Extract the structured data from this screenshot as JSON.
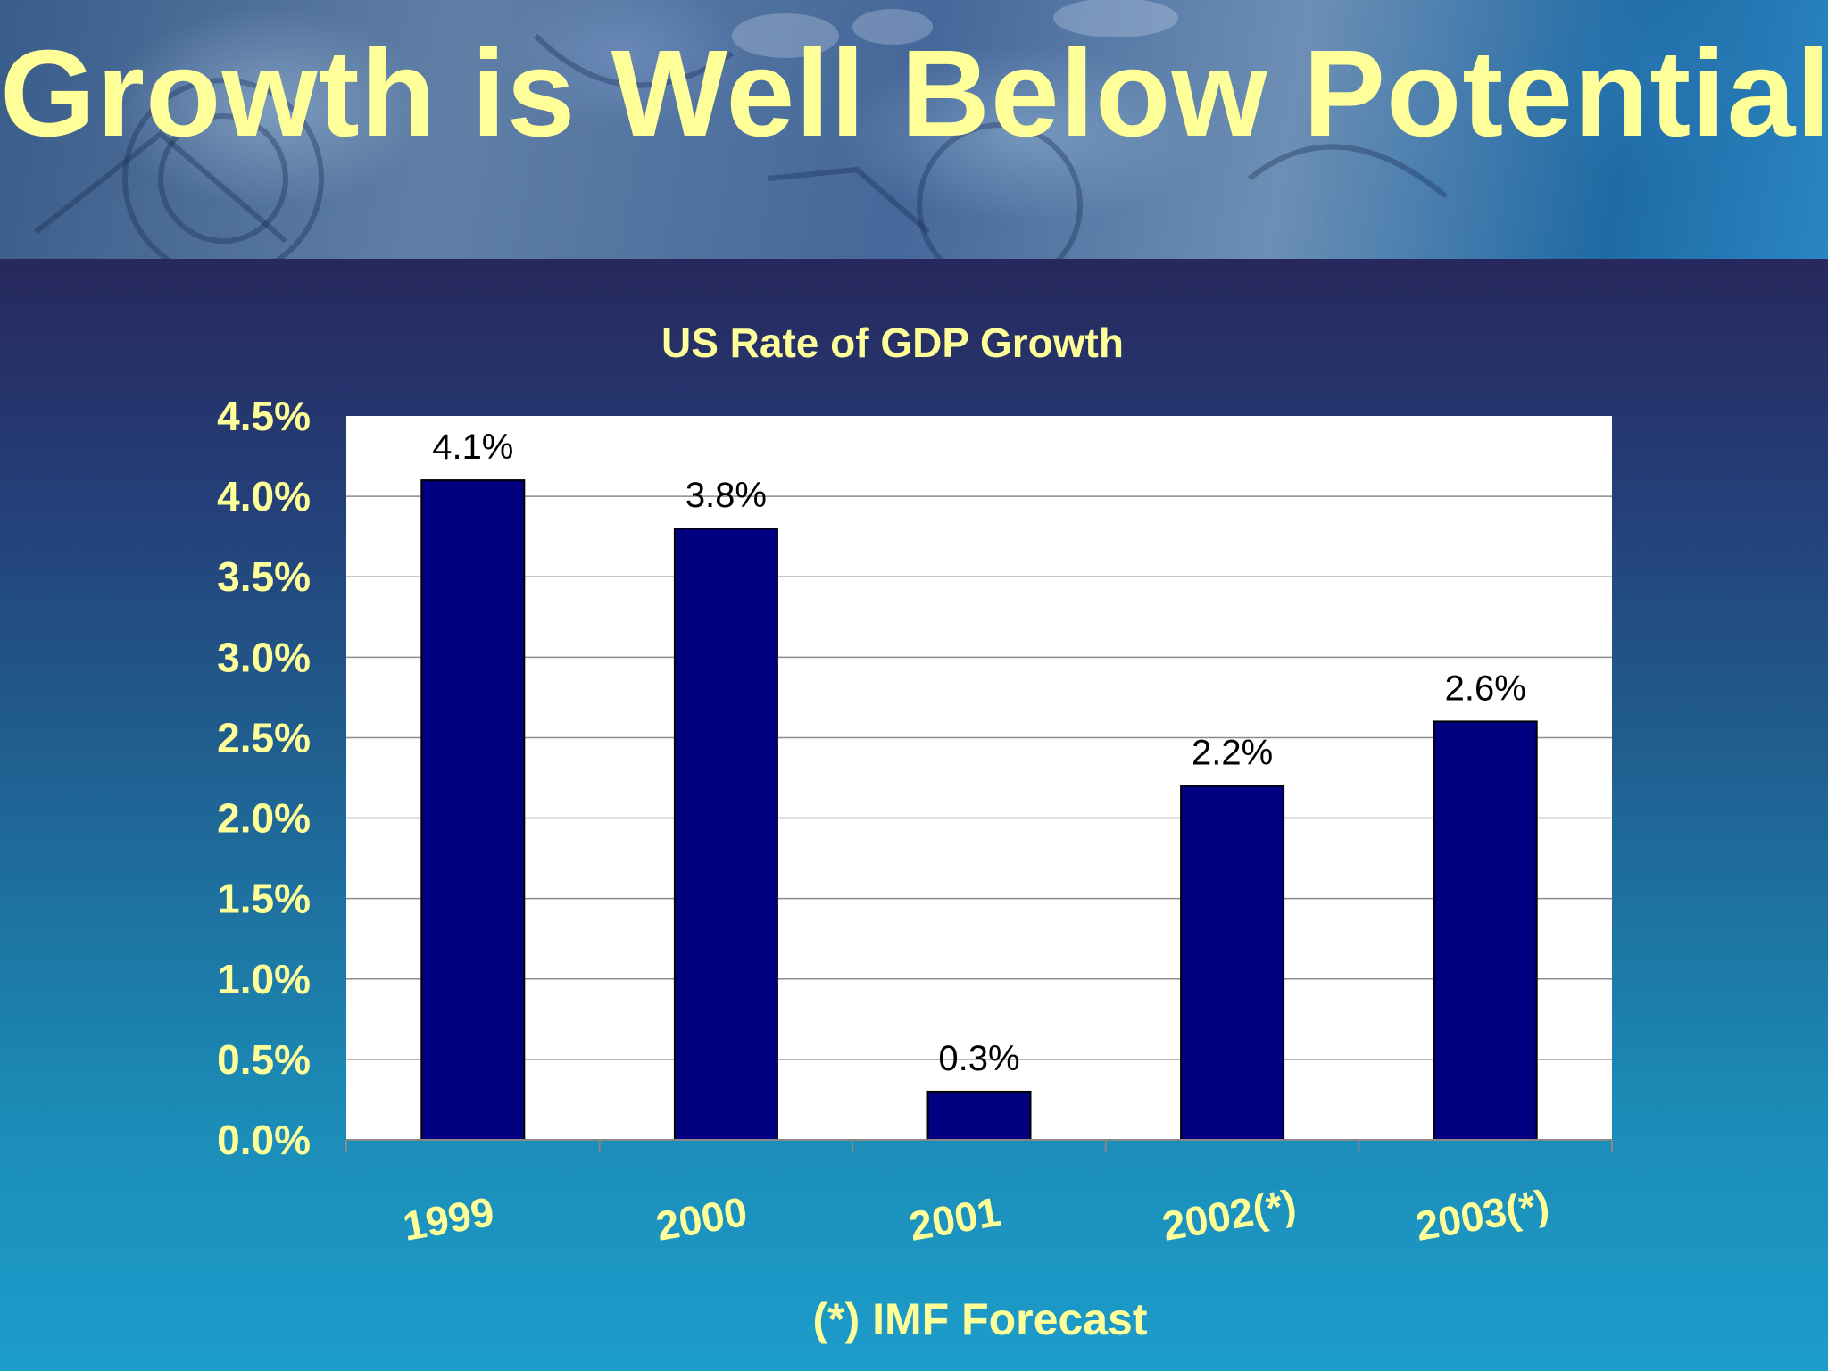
{
  "slide": {
    "title": "Growth is Well Below Potential",
    "footnote": "(*) IMF Forecast"
  },
  "chart_data": {
    "type": "bar",
    "title": "US Rate of GDP Growth",
    "categories": [
      "1999",
      "2000",
      "2001",
      "2002(*)",
      "2003(*)"
    ],
    "values": [
      4.1,
      3.8,
      0.3,
      2.2,
      2.6
    ],
    "data_labels": [
      "4.1%",
      "3.8%",
      "0.3%",
      "2.2%",
      "2.6%"
    ],
    "ylim": [
      0,
      4.5
    ],
    "yticks": [
      0,
      0.5,
      1.0,
      1.5,
      2.0,
      2.5,
      3.0,
      3.5,
      4.0,
      4.5
    ],
    "ytick_labels": [
      "0.0%",
      "0.5%",
      "1.0%",
      "1.5%",
      "2.0%",
      "2.5%",
      "3.0%",
      "3.5%",
      "4.0%",
      "4.5%"
    ],
    "xlabel": "",
    "ylabel": "",
    "grid": true,
    "legend": "none",
    "colors": {
      "bar": "#000080",
      "plot_background": "#ffffff",
      "gridline": "#8c8c8c",
      "text": "#ffff99",
      "data_label": "#000000"
    }
  }
}
